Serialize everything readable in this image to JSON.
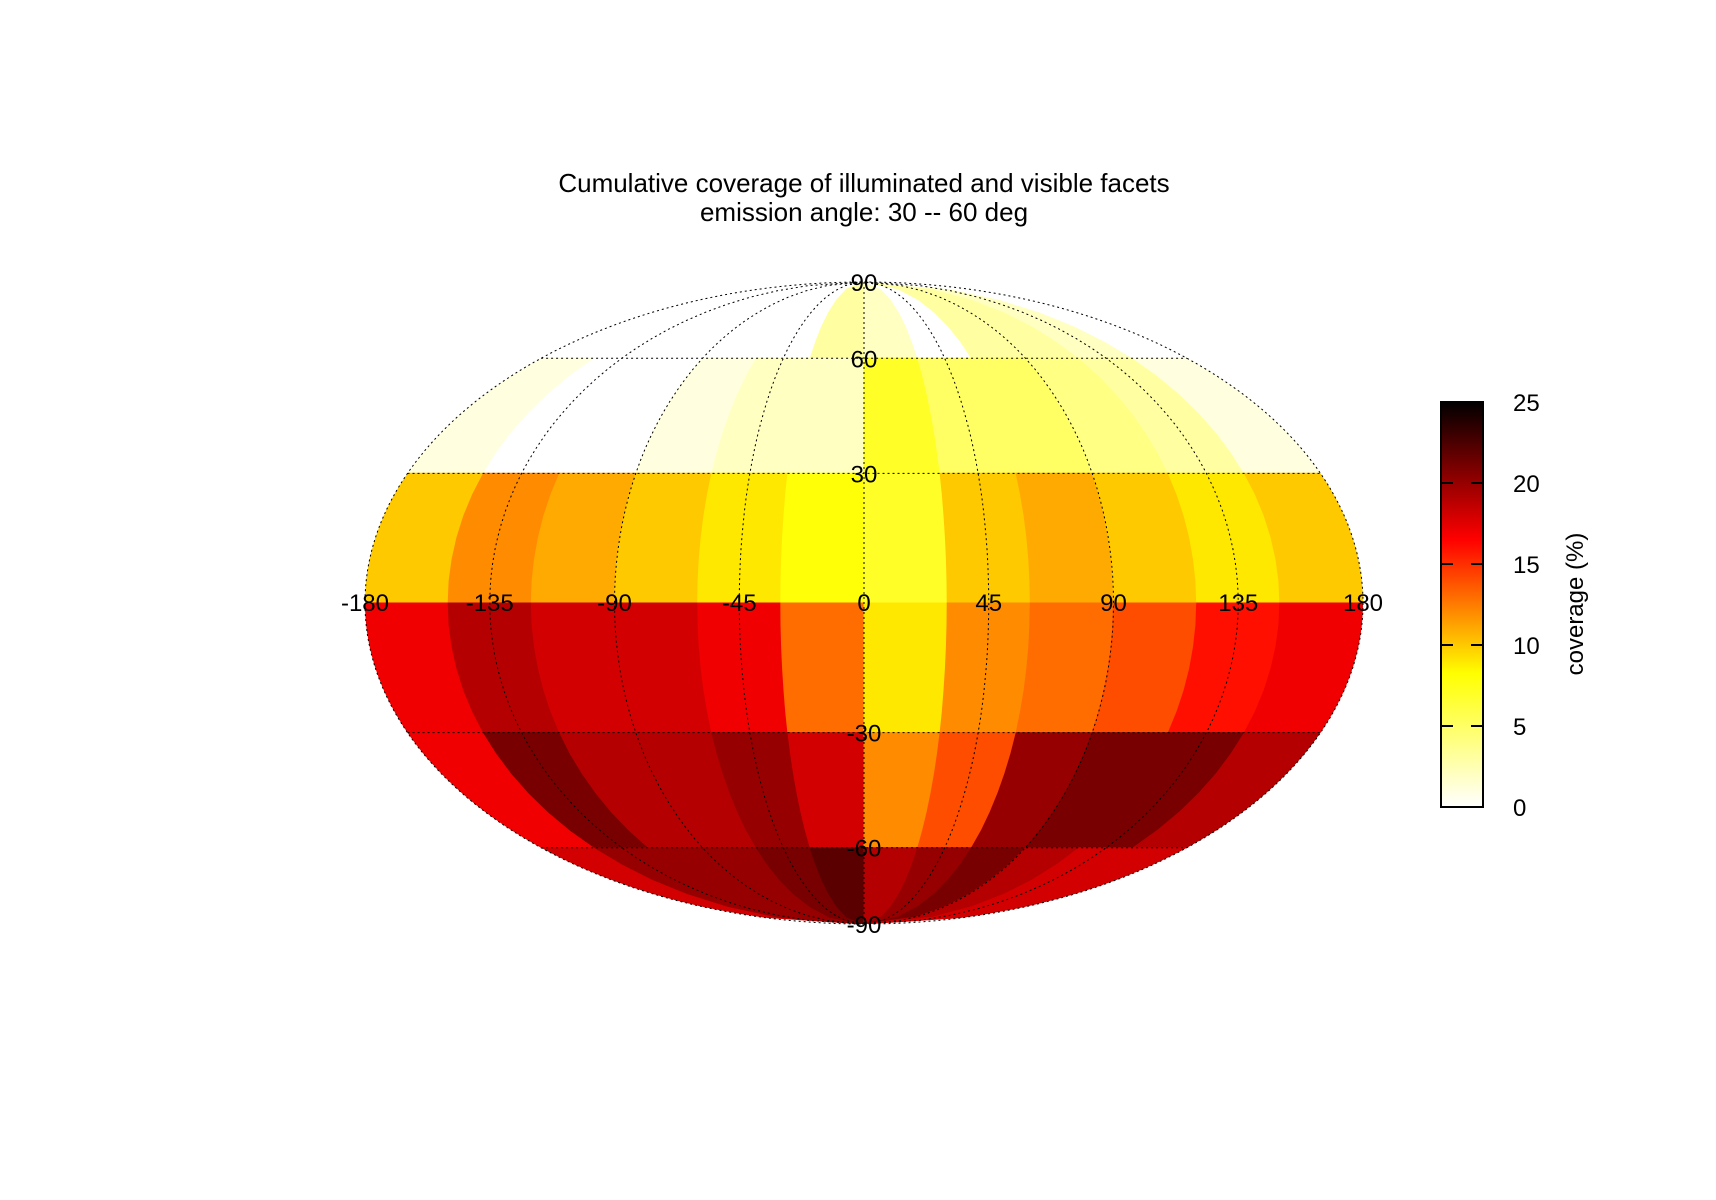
{
  "chart_data": {
    "type": "heatmap",
    "projection": "mollweide",
    "title": "Cumulative coverage of illuminated and visible facets",
    "subtitle": "emission angle: 30 -- 60 deg",
    "lon_ticks": [
      -180,
      -135,
      -90,
      -45,
      0,
      45,
      90,
      135,
      180
    ],
    "lon_tick_labels": [
      "-180",
      "-135",
      "-90",
      "-45",
      "0",
      "45",
      "90",
      "135",
      "180"
    ],
    "lat_ticks": [
      90,
      60,
      30,
      -30,
      -60,
      -90
    ],
    "lat_tick_labels": [
      "90",
      "60",
      "30",
      "-30",
      "-60",
      "-90"
    ],
    "colorbar": {
      "label": "coverage (%)",
      "min": 0,
      "max": 25,
      "ticks": [
        0,
        5,
        10,
        15,
        20,
        25
      ],
      "tick_labels": [
        "0",
        "5",
        "10",
        "15",
        "20",
        "25"
      ],
      "colormap": "hot-reversed"
    },
    "grid": true,
    "lat_bands": [
      75,
      45,
      15,
      -15,
      -45,
      -75
    ],
    "lon_bands": [
      -165,
      -135,
      -105,
      -75,
      -45,
      -15,
      15,
      45,
      75,
      105,
      135,
      165
    ],
    "values": [
      [
        0,
        0,
        0,
        0,
        0,
        3,
        2,
        0,
        3,
        3,
        2,
        0
      ],
      [
        1,
        0,
        0,
        1,
        2,
        2,
        7,
        5,
        5,
        4,
        3,
        1
      ],
      [
        10,
        12,
        11,
        10,
        9,
        8,
        7,
        10,
        11,
        10,
        9,
        10
      ],
      [
        17,
        19,
        18,
        18,
        17,
        13,
        9,
        12,
        13,
        14,
        16,
        17
      ],
      [
        17,
        21,
        19,
        19,
        20,
        18,
        12,
        14,
        20,
        21,
        21,
        19
      ],
      [
        18,
        20,
        20,
        20,
        21,
        22,
        19,
        20,
        21,
        19,
        18,
        18
      ]
    ]
  }
}
